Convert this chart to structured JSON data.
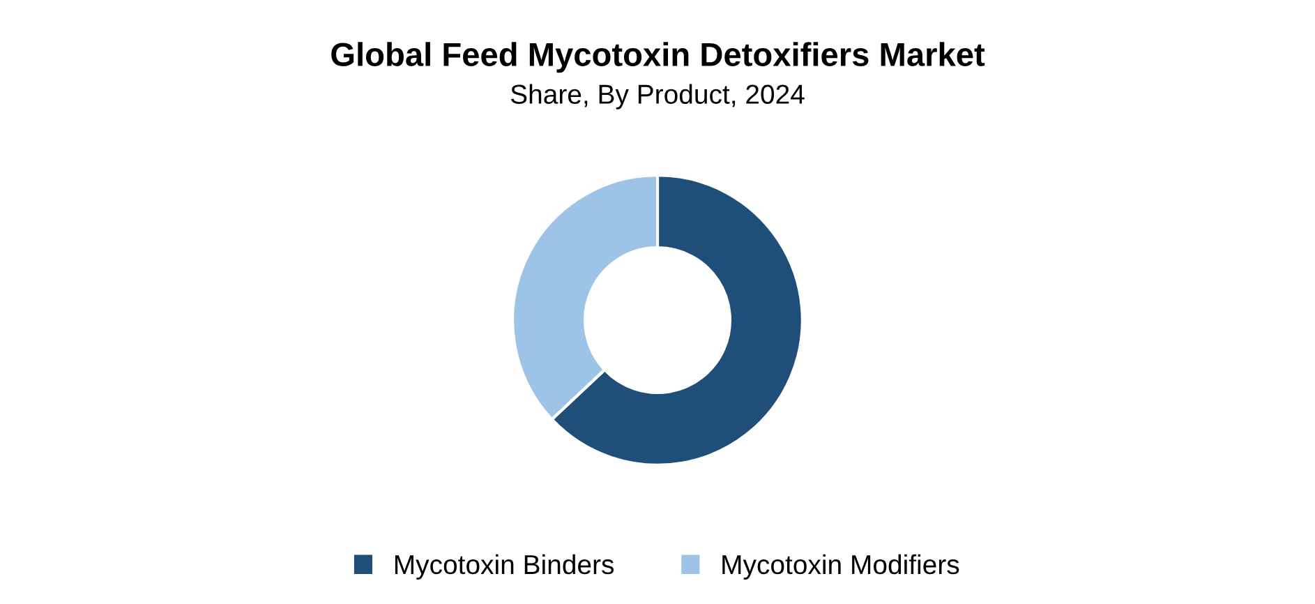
{
  "chart_data": {
    "type": "donut",
    "title": "Global Feed Mycotoxin Detoxifiers Market",
    "subtitle": "Share, By Product, 2024",
    "categories": [
      "Mycotoxin Binders",
      "Mycotoxin Modifiers"
    ],
    "values": [
      63,
      37
    ],
    "colors": [
      "#1f4e79",
      "#9dc3e6"
    ],
    "legend": "bottom"
  }
}
